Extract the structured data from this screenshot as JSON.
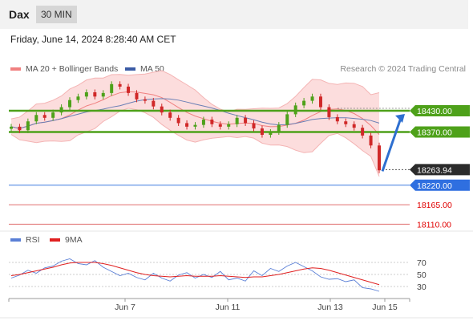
{
  "header": {
    "symbol": "Dax",
    "timeframe": "30 MIN"
  },
  "timestamp": "Friday, June 14, 2024 8:28:40 AM CET",
  "legend": {
    "items": [
      {
        "label": "MA 20 + Bollinger Bands",
        "color": "#f08080"
      },
      {
        "label": "MA 50",
        "color": "#3b5ba5"
      }
    ],
    "credit": "Research © 2024 Trading Central"
  },
  "rsi_legend": {
    "items": [
      {
        "label": "RSI",
        "color": "#5a7fd6"
      },
      {
        "label": "9MA",
        "color": "#e02020"
      }
    ]
  },
  "chart_data": [
    {
      "type": "line",
      "title": "",
      "ylim": [
        18095,
        18525
      ],
      "x_labels": [
        "Jun 7",
        "Jun 11",
        "Jun 13",
        "Jun 15"
      ],
      "series": [
        {
          "name": "",
          "values": [
            18385,
            18375,
            18400,
            18418,
            18410,
            18425,
            18440,
            18460,
            18470,
            18482,
            18470,
            18480,
            18505,
            18498,
            18480,
            18462,
            18458,
            18442,
            18425,
            18410,
            18395,
            18385,
            18390,
            18405,
            18392,
            18385,
            18392,
            18410,
            18395,
            18380,
            18362,
            18370,
            18390,
            18420,
            18445,
            18458,
            18470,
            18440,
            18412,
            18400,
            18392,
            18382,
            18360,
            18332,
            18262
          ]
        }
      ],
      "price_tag": {
        "label": "18263.94",
        "value": 18263.94
      },
      "levels": [
        {
          "label": "18430.00",
          "value": 18430,
          "kind": "resistance"
        },
        {
          "label": "18370.00",
          "value": 18370,
          "kind": "resistance"
        },
        {
          "label": "18220.00",
          "value": 18220,
          "kind": "pivot"
        },
        {
          "label": "18165.00",
          "value": 18165,
          "kind": "support"
        },
        {
          "label": "18110.00",
          "value": 18110,
          "kind": "support"
        }
      ]
    },
    {
      "type": "line",
      "title": "",
      "ylim": [
        10,
        90
      ],
      "y_ticks": [
        "70",
        "50",
        "30"
      ],
      "series": [
        {
          "name": "RSI",
          "values": [
            44,
            49,
            57,
            52,
            61,
            64,
            72,
            76,
            68,
            66,
            73,
            62,
            55,
            48,
            52,
            45,
            41,
            52,
            44,
            39,
            49,
            53,
            44,
            50,
            45,
            55,
            41,
            44,
            39,
            56,
            48,
            60,
            55,
            64,
            70,
            63,
            56,
            46,
            42,
            43,
            38,
            41,
            28,
            26,
            22
          ]
        },
        {
          "name": "9MA",
          "values": [
            48,
            50,
            53,
            56,
            59,
            62,
            66,
            69,
            70,
            70,
            70,
            68,
            65,
            61,
            57,
            53,
            50,
            48,
            47,
            46,
            47,
            48,
            47,
            47,
            47,
            48,
            47,
            46,
            45,
            46,
            46,
            48,
            50,
            53,
            56,
            59,
            61,
            60,
            57,
            53,
            49,
            45,
            41,
            37,
            33
          ]
        }
      ]
    }
  ]
}
